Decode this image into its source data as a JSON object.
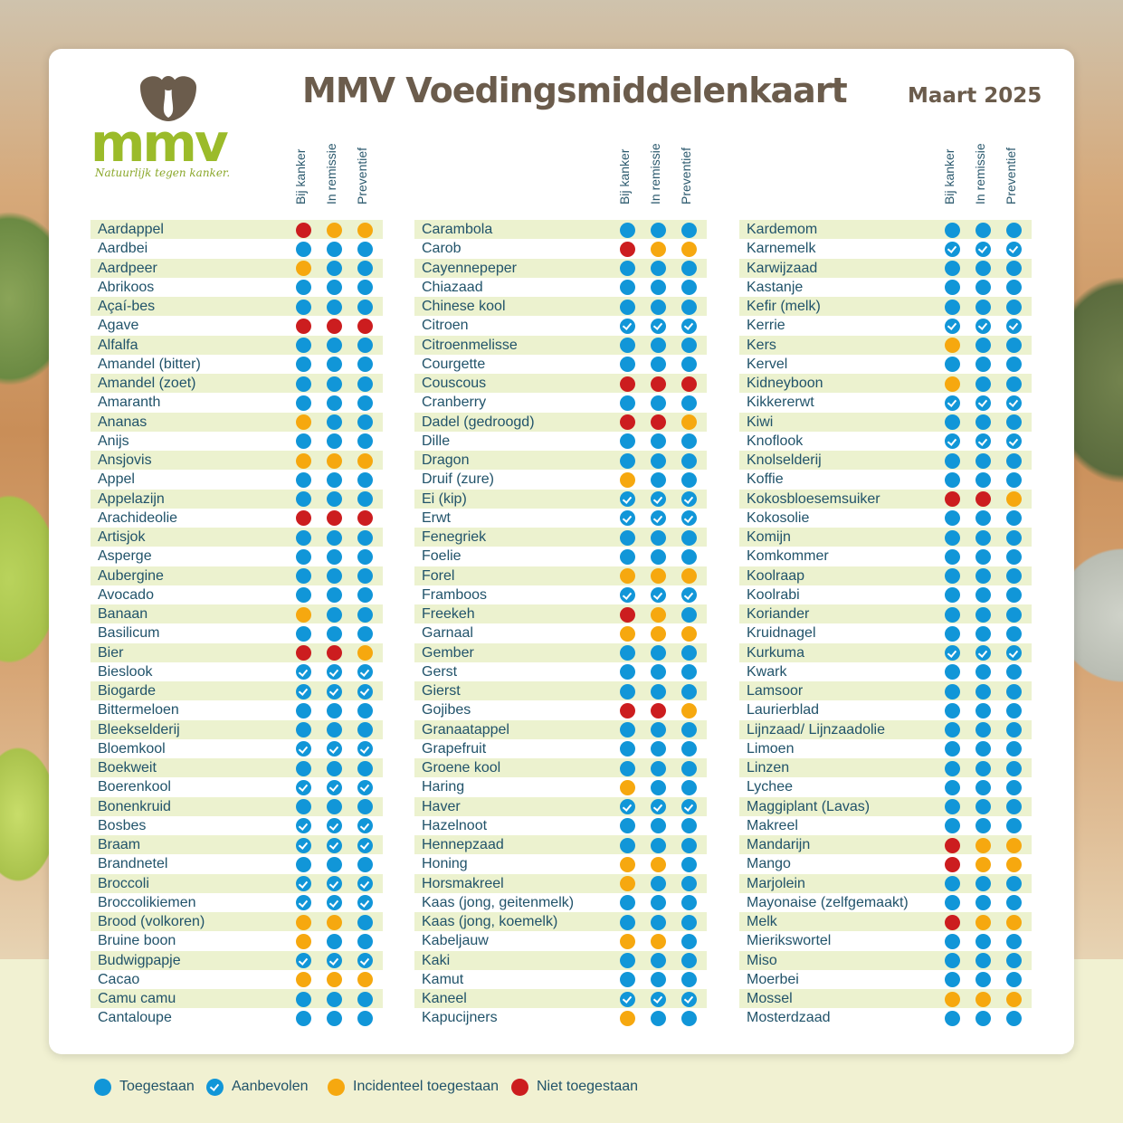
{
  "title": "MMV Voedingsmiddelenkaart",
  "date": "Maart 2025",
  "logo": {
    "wordmark": "mmv",
    "tagline": "Natuurlijk tegen kanker."
  },
  "headers": [
    "Bij kanker",
    "In remissie",
    "Preventief"
  ],
  "colors": {
    "t": "#1196d8",
    "a": "#1196d8",
    "i": "#f6a80f",
    "n": "#cc1d1f",
    "shade": "#ecf2cf",
    "text": "#21536a",
    "title": "#6b5c4c"
  },
  "legend": [
    {
      "code": "t",
      "label": "Toegestaan"
    },
    {
      "code": "a",
      "label": "Aanbevolen"
    },
    {
      "code": "i",
      "label": "Incidenteel toegestaan"
    },
    {
      "code": "n",
      "label": "Niet toegestaan"
    }
  ],
  "columns": [
    [
      [
        "Aardappel",
        "nii"
      ],
      [
        "Aardbei",
        "ttt"
      ],
      [
        "Aardpeer",
        "itt"
      ],
      [
        "Abrikoos",
        "ttt"
      ],
      [
        "Açaí-bes",
        "ttt"
      ],
      [
        "Agave",
        "nnn"
      ],
      [
        "Alfalfa",
        "ttt"
      ],
      [
        "Amandel (bitter)",
        "ttt"
      ],
      [
        "Amandel (zoet)",
        "ttt"
      ],
      [
        "Amaranth",
        "ttt"
      ],
      [
        "Ananas",
        "itt"
      ],
      [
        "Anijs",
        "ttt"
      ],
      [
        "Ansjovis",
        "iii"
      ],
      [
        "Appel",
        "ttt"
      ],
      [
        "Appelazijn",
        "ttt"
      ],
      [
        "Arachideolie",
        "nnn"
      ],
      [
        "Artisjok",
        "ttt"
      ],
      [
        "Asperge",
        "ttt"
      ],
      [
        "Aubergine",
        "ttt"
      ],
      [
        "Avocado",
        "ttt"
      ],
      [
        "Banaan",
        "itt"
      ],
      [
        "Basilicum",
        "ttt"
      ],
      [
        "Bier",
        "nni"
      ],
      [
        "Bieslook",
        "aaa"
      ],
      [
        "Biogarde",
        "aaa"
      ],
      [
        "Bittermeloen",
        "ttt"
      ],
      [
        "Bleekselderij",
        "ttt"
      ],
      [
        "Bloemkool",
        "aaa"
      ],
      [
        "Boekweit",
        "ttt"
      ],
      [
        "Boerenkool",
        "aaa"
      ],
      [
        "Bonenkruid",
        "ttt"
      ],
      [
        "Bosbes",
        "aaa"
      ],
      [
        "Braam",
        "aaa"
      ],
      [
        "Brandnetel",
        "ttt"
      ],
      [
        "Broccoli",
        "aaa"
      ],
      [
        "Broccolikiemen",
        "aaa"
      ],
      [
        "Brood (volkoren)",
        "iit"
      ],
      [
        "Bruine boon",
        "itt"
      ],
      [
        "Budwigpapje",
        "aaa"
      ],
      [
        "Cacao",
        "iii"
      ],
      [
        "Camu camu",
        "ttt"
      ],
      [
        "Cantaloupe",
        "ttt"
      ]
    ],
    [
      [
        "Carambola",
        "ttt"
      ],
      [
        "Carob",
        "nii"
      ],
      [
        "Cayennepeper",
        "ttt"
      ],
      [
        "Chiazaad",
        "ttt"
      ],
      [
        "Chinese kool",
        "ttt"
      ],
      [
        "Citroen",
        "aaa"
      ],
      [
        "Citroenmelisse",
        "ttt"
      ],
      [
        "Courgette",
        "ttt"
      ],
      [
        "Couscous",
        "nnn"
      ],
      [
        "Cranberry",
        "ttt"
      ],
      [
        "Dadel (gedroogd)",
        "nni"
      ],
      [
        "Dille",
        "ttt"
      ],
      [
        "Dragon",
        "ttt"
      ],
      [
        "Druif (zure)",
        "itt"
      ],
      [
        "Ei (kip)",
        "aaa"
      ],
      [
        "Erwt",
        "aaa"
      ],
      [
        "Fenegriek",
        "ttt"
      ],
      [
        "Foelie",
        "ttt"
      ],
      [
        "Forel",
        "iii"
      ],
      [
        "Framboos",
        "aaa"
      ],
      [
        "Freekeh",
        "nit"
      ],
      [
        "Garnaal",
        "iii"
      ],
      [
        "Gember",
        "ttt"
      ],
      [
        "Gerst",
        "ttt"
      ],
      [
        "Gierst",
        "ttt"
      ],
      [
        "Gojibes",
        "nni"
      ],
      [
        "Granaatappel",
        "ttt"
      ],
      [
        "Grapefruit",
        "ttt"
      ],
      [
        "Groene kool",
        "ttt"
      ],
      [
        "Haring",
        "itt"
      ],
      [
        "Haver",
        "aaa"
      ],
      [
        "Hazelnoot",
        "ttt"
      ],
      [
        "Hennepzaad",
        "ttt"
      ],
      [
        "Honing",
        "iit"
      ],
      [
        "Horsmakreel",
        "itt"
      ],
      [
        "Kaas (jong, geitenmelk)",
        "ttt"
      ],
      [
        "Kaas (jong, koemelk)",
        "ttt"
      ],
      [
        "Kabeljauw",
        "iit"
      ],
      [
        "Kaki",
        "ttt"
      ],
      [
        "Kamut",
        "ttt"
      ],
      [
        "Kaneel",
        "aaa"
      ],
      [
        "Kapucijners",
        "itt"
      ]
    ],
    [
      [
        "Kardemom",
        "ttt"
      ],
      [
        "Karnemelk",
        "aaa"
      ],
      [
        "Karwijzaad",
        "ttt"
      ],
      [
        "Kastanje",
        "ttt"
      ],
      [
        "Kefir (melk)",
        "ttt"
      ],
      [
        "Kerrie",
        "aaa"
      ],
      [
        "Kers",
        "itt"
      ],
      [
        "Kervel",
        "ttt"
      ],
      [
        "Kidneyboon",
        "itt"
      ],
      [
        "Kikkererwt",
        "aaa"
      ],
      [
        "Kiwi",
        "ttt"
      ],
      [
        "Knoflook",
        "aaa"
      ],
      [
        "Knolselderij",
        "ttt"
      ],
      [
        "Koffie",
        "ttt"
      ],
      [
        "Kokosbloesemsuiker",
        "nni"
      ],
      [
        "Kokosolie",
        "ttt"
      ],
      [
        "Komijn",
        "ttt"
      ],
      [
        "Komkommer",
        "ttt"
      ],
      [
        "Koolraap",
        "ttt"
      ],
      [
        "Koolrabi",
        "ttt"
      ],
      [
        "Koriander",
        "ttt"
      ],
      [
        "Kruidnagel",
        "ttt"
      ],
      [
        "Kurkuma",
        "aaa"
      ],
      [
        "Kwark",
        "ttt"
      ],
      [
        "Lamsoor",
        "ttt"
      ],
      [
        "Laurierblad",
        "ttt"
      ],
      [
        "Lijnzaad/ Lijnzaadolie",
        "ttt"
      ],
      [
        "Limoen",
        "ttt"
      ],
      [
        "Linzen",
        "ttt"
      ],
      [
        "Lychee",
        "ttt"
      ],
      [
        "Maggiplant (Lavas)",
        "ttt"
      ],
      [
        "Makreel",
        "ttt"
      ],
      [
        "Mandarijn",
        "nii"
      ],
      [
        "Mango",
        "nii"
      ],
      [
        "Marjolein",
        "ttt"
      ],
      [
        "Mayonaise (zelfgemaakt)",
        "ttt"
      ],
      [
        "Melk",
        "nii"
      ],
      [
        "Mierikswortel",
        "ttt"
      ],
      [
        "Miso",
        "ttt"
      ],
      [
        "Moerbei",
        "ttt"
      ],
      [
        "Mossel",
        "iii"
      ],
      [
        "Mosterdzaad",
        "ttt"
      ]
    ]
  ]
}
